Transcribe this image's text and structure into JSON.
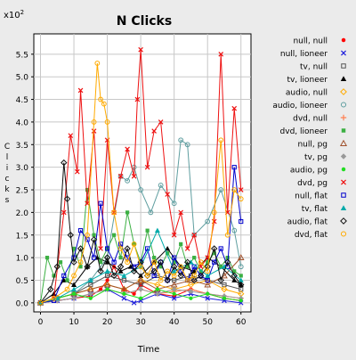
{
  "chart_data": {
    "type": "line",
    "title": "N Clicks",
    "xlabel": "Time",
    "ylabel": "Clicks",
    "y_multiplier": "x10",
    "y_multiplier_exp": "2",
    "xlim": [
      -2,
      63
    ],
    "ylim": [
      -0.2,
      5.95
    ],
    "x_ticks": [
      0,
      10,
      20,
      30,
      40,
      50,
      60
    ],
    "y_ticks": [
      0.0,
      0.5,
      1.0,
      1.5,
      2.0,
      2.5,
      3.0,
      3.5,
      4.0,
      4.5,
      5.0,
      5.5
    ],
    "y_tick_labels": [
      "0.0",
      "0.5",
      "1.0",
      "1.5",
      "2.0",
      "2.5",
      "3.0",
      "3.5",
      "4.0",
      "4.5",
      "5.0",
      "5.5"
    ],
    "grid": true,
    "legend_position": "right",
    "series": [
      {
        "name": "null, null",
        "color": "#ff0000",
        "marker": "dot",
        "x": [
          0,
          5,
          10,
          15,
          18,
          20,
          22,
          25,
          28,
          30,
          35,
          40,
          45,
          50,
          55,
          60
        ],
        "y": [
          0.0,
          0.05,
          0.1,
          0.15,
          0.3,
          0.5,
          0.8,
          0.3,
          0.2,
          0.4,
          0.2,
          0.15,
          0.3,
          0.2,
          0.1,
          0.05
        ]
      },
      {
        "name": "null, lioneer",
        "color": "#1f1fdc",
        "marker": "x",
        "x": [
          0,
          5,
          10,
          15,
          20,
          25,
          28,
          30,
          35,
          40,
          45,
          50,
          55,
          60
        ],
        "y": [
          0.0,
          0.05,
          0.1,
          0.2,
          0.3,
          0.1,
          0.0,
          0.05,
          0.2,
          0.1,
          0.2,
          0.1,
          0.05,
          0.0
        ]
      },
      {
        "name": "tv, null",
        "color": "#555555",
        "marker": "square",
        "x": [
          0,
          5,
          10,
          15,
          20,
          25,
          30,
          35,
          40,
          45,
          50,
          55,
          60
        ],
        "y": [
          0.0,
          0.1,
          0.2,
          0.4,
          0.6,
          0.5,
          0.4,
          0.6,
          0.5,
          0.6,
          0.5,
          0.4,
          0.3
        ]
      },
      {
        "name": "tv, lioneer",
        "color": "#000000",
        "marker": "triangle",
        "x": [
          0,
          4,
          7,
          10,
          14,
          17,
          20,
          24,
          27,
          30,
          34,
          38,
          42,
          46,
          50,
          54,
          58,
          60
        ],
        "y": [
          0.0,
          0.2,
          0.5,
          0.4,
          0.8,
          1.0,
          0.9,
          0.7,
          0.8,
          0.6,
          0.9,
          1.2,
          0.8,
          0.7,
          1.0,
          0.8,
          0.5,
          0.4
        ]
      },
      {
        "name": "audio, null",
        "color": "#ffaa00",
        "marker": "diamond",
        "x": [
          0,
          5,
          10,
          15,
          20,
          25,
          30,
          35,
          40,
          45,
          50,
          55,
          60
        ],
        "y": [
          0.0,
          0.1,
          0.2,
          0.3,
          0.4,
          0.3,
          0.5,
          0.4,
          0.3,
          0.4,
          0.5,
          0.3,
          0.2
        ]
      },
      {
        "name": "audio, lioneer",
        "color": "#5f9ea0",
        "marker": "circle",
        "x": [
          0,
          5,
          10,
          15,
          20,
          24,
          26,
          28,
          30,
          33,
          36,
          40,
          42,
          44,
          46,
          50,
          54,
          58,
          60
        ],
        "y": [
          0.0,
          0.1,
          0.2,
          0.5,
          1.0,
          2.8,
          2.7,
          3.0,
          2.5,
          2.0,
          2.6,
          2.2,
          3.6,
          3.5,
          1.5,
          1.8,
          2.5,
          1.6,
          0.8
        ]
      },
      {
        "name": "dvd, null",
        "color": "#ff7f50",
        "marker": "plus",
        "x": [
          0,
          5,
          10,
          15,
          20,
          25,
          30,
          35,
          40,
          45,
          50,
          55,
          60
        ],
        "y": [
          0.0,
          0.05,
          0.1,
          0.2,
          0.3,
          0.2,
          0.3,
          0.2,
          0.25,
          0.3,
          0.2,
          0.15,
          0.1
        ]
      },
      {
        "name": "dvd, lioneer",
        "color": "#3cb043",
        "marker": "square-filled",
        "x": [
          0,
          2,
          4,
          6,
          8,
          10,
          12,
          14,
          16,
          18,
          20,
          22,
          24,
          26,
          28,
          30,
          32,
          34,
          36,
          38,
          40,
          42,
          44,
          46,
          48,
          50,
          52,
          54,
          56,
          58,
          60
        ],
        "y": [
          0.0,
          1.0,
          0.6,
          0.9,
          0.5,
          1.2,
          0.8,
          2.5,
          1.5,
          0.9,
          1.2,
          1.5,
          1.0,
          2.0,
          1.3,
          0.9,
          1.6,
          1.0,
          0.8,
          1.1,
          0.9,
          1.3,
          0.8,
          1.0,
          0.7,
          0.9,
          1.1,
          0.8,
          1.0,
          0.7,
          0.6
        ]
      },
      {
        "name": "null, pg",
        "color": "#a0522d",
        "marker": "triangle-open",
        "x": [
          0,
          5,
          10,
          15,
          20,
          25,
          30,
          35,
          40,
          45,
          50,
          55,
          60
        ],
        "y": [
          0.0,
          0.1,
          0.2,
          0.3,
          0.4,
          0.3,
          0.5,
          0.3,
          0.4,
          0.5,
          0.4,
          0.6,
          1.0
        ]
      },
      {
        "name": "tv, pg",
        "color": "#999999",
        "marker": "diamond-filled",
        "x": [
          0,
          5,
          10,
          15,
          20,
          25,
          30,
          35,
          40,
          45,
          50,
          55,
          60
        ],
        "y": [
          0.0,
          0.05,
          0.1,
          0.2,
          0.3,
          0.2,
          0.3,
          0.2,
          0.3,
          0.25,
          0.2,
          0.15,
          0.1
        ]
      },
      {
        "name": "audio, pg",
        "color": "#22dd22",
        "marker": "dot",
        "x": [
          0,
          5,
          10,
          15,
          20,
          25,
          30,
          35,
          40,
          45,
          50,
          55,
          60
        ],
        "y": [
          0.0,
          0.1,
          0.2,
          0.1,
          0.3,
          0.2,
          0.1,
          0.3,
          0.2,
          0.1,
          0.2,
          0.1,
          0.05
        ]
      },
      {
        "name": "dvd, pg",
        "color": "#ee1111",
        "marker": "x",
        "x": [
          0,
          4,
          7,
          9,
          11,
          12,
          14,
          16,
          18,
          20,
          22,
          24,
          26,
          28,
          29,
          30,
          32,
          34,
          36,
          38,
          40,
          42,
          44,
          46,
          48,
          50,
          52,
          54,
          56,
          58,
          60
        ],
        "y": [
          0.0,
          0.1,
          2.0,
          3.7,
          2.9,
          4.7,
          2.2,
          3.8,
          1.2,
          3.6,
          2.0,
          2.8,
          3.4,
          2.8,
          4.5,
          5.6,
          3.0,
          3.8,
          4.0,
          2.4,
          1.5,
          2.0,
          1.2,
          1.5,
          0.8,
          1.0,
          1.8,
          5.5,
          2.0,
          4.3,
          2.5
        ]
      },
      {
        "name": "null, flat",
        "color": "#0000cc",
        "marker": "square-open",
        "x": [
          0,
          4,
          7,
          10,
          12,
          14,
          16,
          18,
          20,
          22,
          24,
          26,
          28,
          30,
          32,
          34,
          36,
          38,
          40,
          42,
          44,
          46,
          48,
          50,
          52,
          54,
          56,
          58,
          60
        ],
        "y": [
          0.0,
          0.05,
          0.6,
          1.0,
          1.6,
          1.4,
          1.0,
          2.2,
          1.2,
          0.9,
          1.3,
          1.0,
          0.8,
          0.9,
          1.2,
          0.6,
          0.9,
          0.5,
          1.0,
          0.7,
          0.5,
          0.8,
          0.6,
          0.5,
          0.9,
          1.2,
          0.8,
          3.0,
          1.8
        ]
      },
      {
        "name": "tv, flat",
        "color": "#00aaaa",
        "marker": "triangle-filled",
        "x": [
          0,
          5,
          10,
          15,
          20,
          25,
          30,
          35,
          40,
          45,
          50,
          55,
          60
        ],
        "y": [
          0.0,
          0.1,
          0.3,
          0.5,
          0.7,
          0.6,
          0.8,
          1.6,
          0.7,
          0.9,
          0.6,
          0.8,
          0.5
        ]
      },
      {
        "name": "audio, flat",
        "color": "#111111",
        "marker": "diamond-open",
        "x": [
          0,
          3,
          5,
          7,
          8,
          9,
          10,
          12,
          14,
          16,
          18,
          20,
          22,
          24,
          26,
          28,
          30,
          32,
          34,
          36,
          38,
          40,
          42,
          44,
          46,
          48,
          50,
          52,
          54,
          56,
          58,
          60
        ],
        "y": [
          0.0,
          0.3,
          0.8,
          3.1,
          2.3,
          1.5,
          0.9,
          1.2,
          0.8,
          1.4,
          0.7,
          1.0,
          0.6,
          0.8,
          1.2,
          0.7,
          0.9,
          0.6,
          0.7,
          0.9,
          0.5,
          0.8,
          0.6,
          0.9,
          0.5,
          0.6,
          0.8,
          1.2,
          0.5,
          0.9,
          0.6,
          0.4
        ]
      },
      {
        "name": "dvd, flat",
        "color": "#ffaa00",
        "marker": "circle-open",
        "x": [
          0,
          4,
          8,
          10,
          12,
          14,
          16,
          17,
          18,
          19,
          20,
          22,
          24,
          26,
          28,
          30,
          32,
          34,
          36,
          38,
          40,
          42,
          44,
          46,
          48,
          50,
          52,
          54,
          56,
          58,
          60
        ],
        "y": [
          0.0,
          0.1,
          0.3,
          0.6,
          0.9,
          1.5,
          4.0,
          5.3,
          4.5,
          4.4,
          4.0,
          2.0,
          1.2,
          0.9,
          1.3,
          0.8,
          0.6,
          0.9,
          0.5,
          0.7,
          0.6,
          0.8,
          0.5,
          0.6,
          0.9,
          0.7,
          2.0,
          3.6,
          1.5,
          2.5,
          2.3
        ]
      }
    ]
  }
}
